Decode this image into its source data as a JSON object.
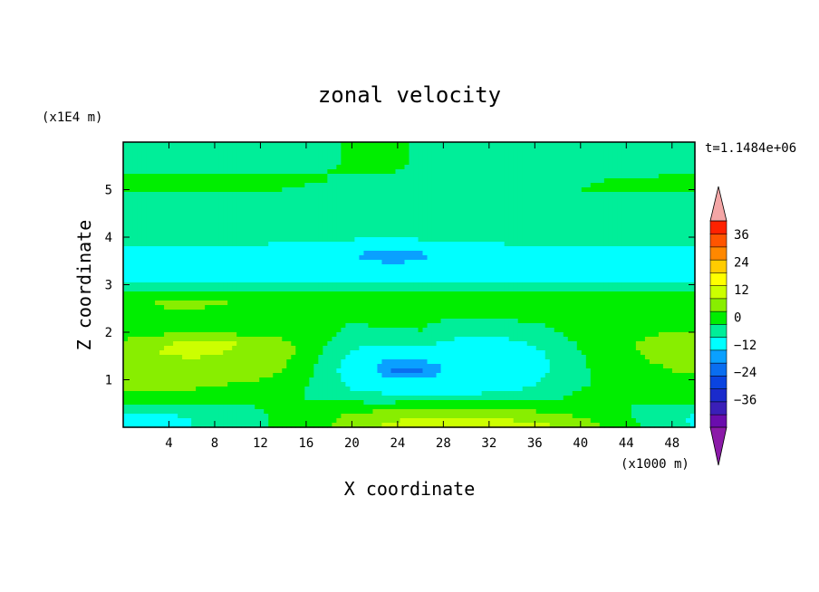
{
  "chart_data": {
    "type": "heatmap",
    "title": "zonal velocity",
    "xlabel": "X coordinate",
    "ylabel": "Z coordinate",
    "x_unit": "(x1000 m)",
    "y_unit": "(x1E4 m)",
    "time_label": "t=1.1484e+06",
    "xlim": [
      0,
      50
    ],
    "ylim": [
      0,
      6
    ],
    "x_ticks": [
      4,
      8,
      12,
      16,
      20,
      24,
      28,
      32,
      36,
      40,
      44,
      48
    ],
    "y_ticks": [
      1,
      2,
      3,
      4,
      5
    ],
    "colorbar": {
      "tick_labels": [
        "36",
        "24",
        "12",
        "0",
        "-12",
        "-24",
        "-36"
      ],
      "tick_values": [
        36,
        24,
        12,
        0,
        -12,
        -24,
        -36
      ],
      "levels": [
        -42,
        -36,
        -30,
        -24,
        -18,
        -12,
        -6,
        0,
        6,
        12,
        18,
        24,
        30,
        36,
        42
      ],
      "colors": [
        "#6a0dad",
        "#3a1fb8",
        "#1a2bcc",
        "#0a44e0",
        "#0a6ef0",
        "#0aa0ff",
        "#00ffff",
        "#00ee99",
        "#00ee00",
        "#88ee00",
        "#ccff00",
        "#ffff00",
        "#ffcc00",
        "#ff8800",
        "#ff5500",
        "#ff2200"
      ],
      "under_color": "#8b1aa8",
      "over_color": "#f4a6a6"
    },
    "field_z": [
      0.0,
      0.2,
      0.4,
      0.6,
      0.8,
      1.0,
      1.2,
      1.4,
      1.6,
      1.8,
      2.0,
      2.2,
      2.4,
      2.6,
      2.8,
      3.0,
      3.2,
      3.4,
      3.6,
      3.8,
      4.0,
      4.2,
      4.4,
      4.6,
      4.8,
      5.0,
      5.2,
      5.4,
      5.6,
      5.8,
      6.0
    ],
    "field_x": [
      0,
      2,
      4,
      6,
      8,
      10,
      12,
      14,
      16,
      18,
      20,
      22,
      24,
      26,
      28,
      30,
      32,
      34,
      36,
      38,
      40,
      42,
      44,
      46,
      48,
      50
    ],
    "field_u": [
      [
        -7,
        -7,
        -7,
        -6,
        -5,
        -3,
        -1,
        2,
        4,
        6,
        9,
        12,
        14,
        15,
        16,
        16,
        16,
        15,
        14,
        12,
        9,
        6,
        2,
        -1,
        -4,
        -6
      ],
      [
        -8,
        -8,
        -7,
        -6,
        -5,
        -3,
        -1,
        1,
        3,
        5,
        8,
        10,
        11,
        12,
        12,
        12,
        12,
        11,
        10,
        9,
        6,
        4,
        1,
        -2,
        -5,
        -7
      ],
      [
        -4,
        -4,
        -4,
        -3,
        -2,
        -1,
        0,
        1,
        2,
        3,
        4,
        4,
        5,
        5,
        5,
        5,
        5,
        5,
        4,
        3,
        2,
        1,
        0,
        -1,
        -2,
        -3
      ],
      [
        3,
        3,
        3,
        3,
        2,
        1,
        1,
        0,
        0,
        -1,
        -2,
        -3,
        -3,
        -3,
        -3,
        -3,
        -3,
        -2,
        -1,
        0,
        1,
        1,
        1,
        1,
        2,
        2
      ],
      [
        6,
        6,
        6,
        6,
        5,
        4,
        3,
        1,
        0,
        -3,
        -6,
        -8,
        -9,
        -9,
        -9,
        -9,
        -8,
        -7,
        -5,
        -2,
        0,
        1,
        1,
        2,
        3,
        3
      ],
      [
        7,
        7,
        8,
        8,
        8,
        7,
        6,
        4,
        1,
        -4,
        -8,
        -10,
        -12,
        -11,
        -10,
        -10,
        -10,
        -9,
        -7,
        -4,
        -1,
        1,
        2,
        3,
        4,
        5
      ],
      [
        8,
        9,
        10,
        10,
        10,
        9,
        8,
        6,
        2,
        -4,
        -9,
        -12,
        -20,
        -19,
        -12,
        -11,
        -11,
        -10,
        -8,
        -5,
        -1,
        2,
        3,
        5,
        6,
        7
      ],
      [
        9,
        10,
        11,
        11,
        11,
        10,
        9,
        7,
        3,
        -3,
        -8,
        -11,
        -14,
        -12,
        -10,
        -10,
        -10,
        -9,
        -8,
        -5,
        -1,
        2,
        4,
        6,
        7,
        8
      ],
      [
        10,
        11,
        13,
        14,
        13,
        11,
        10,
        8,
        4,
        -2,
        -6,
        -8,
        -8,
        -7,
        -8,
        -9,
        -9,
        -8,
        -7,
        -4,
        0,
        3,
        5,
        7,
        8,
        9
      ],
      [
        7,
        8,
        11,
        14,
        14,
        12,
        10,
        7,
        4,
        0,
        -4,
        -5,
        -4,
        -4,
        -6,
        -8,
        -8,
        -7,
        -5,
        -2,
        1,
        3,
        5,
        7,
        9,
        9
      ],
      [
        3,
        4,
        5,
        5,
        5,
        4,
        4,
        3,
        2,
        1,
        -1,
        -2,
        -2,
        0,
        -2,
        -4,
        -4,
        -3,
        -2,
        0,
        2,
        3,
        4,
        5,
        6,
        6
      ],
      [
        2,
        3,
        3,
        3,
        2,
        2,
        1,
        1,
        1,
        1,
        0,
        1,
        2,
        1,
        -1,
        -2,
        -2,
        -1,
        0,
        1,
        1,
        1,
        2,
        2,
        3,
        3
      ],
      [
        4,
        4,
        5,
        5,
        4,
        4,
        3,
        3,
        3,
        3,
        4,
        4,
        4,
        4,
        3,
        3,
        3,
        3,
        3,
        3,
        3,
        3,
        3,
        3,
        3,
        4
      ],
      [
        6,
        6,
        7,
        7,
        7,
        6,
        6,
        5,
        5,
        5,
        6,
        6,
        6,
        6,
        5,
        5,
        5,
        5,
        5,
        5,
        5,
        5,
        5,
        5,
        5,
        6
      ],
      [
        1,
        2,
        2,
        2,
        1,
        1,
        1,
        2,
        2,
        3,
        3,
        3,
        3,
        3,
        2,
        2,
        2,
        2,
        2,
        2,
        2,
        2,
        2,
        2,
        2,
        2
      ],
      [
        -6,
        -6,
        -6,
        -6,
        -5,
        -5,
        -5,
        -5,
        -5,
        -5,
        -5,
        -5,
        -5,
        -5,
        -5,
        -5,
        -5,
        -5,
        -5,
        -5,
        -5,
        -5,
        -5,
        -5,
        -6,
        -6
      ],
      [
        -8,
        -8,
        -8,
        -8,
        -8,
        -8,
        -8,
        -8,
        -8,
        -8,
        -8,
        -8,
        -8,
        -8,
        -8,
        -8,
        -8,
        -8,
        -8,
        -8,
        -8,
        -8,
        -8,
        -8,
        -8,
        -8
      ],
      [
        -8,
        -8,
        -8,
        -8,
        -8,
        -8,
        -8,
        -8,
        -8,
        -9,
        -10,
        -10,
        -10,
        -10,
        -9,
        -8,
        -8,
        -8,
        -8,
        -8,
        -8,
        -8,
        -8,
        -8,
        -8,
        -8
      ],
      [
        -7,
        -7,
        -7,
        -7,
        -7,
        -7,
        -8,
        -8,
        -8,
        -9,
        -11,
        -15,
        -16,
        -14,
        -9,
        -8,
        -8,
        -7,
        -7,
        -7,
        -7,
        -7,
        -7,
        -7,
        -7,
        -7
      ],
      [
        -6,
        -6,
        -6,
        -6,
        -6,
        -6,
        -6,
        -7,
        -7,
        -8,
        -9,
        -10,
        -10,
        -9,
        -8,
        -7,
        -7,
        -6,
        -6,
        -6,
        -6,
        -6,
        -6,
        -6,
        -6,
        -6
      ],
      [
        -5,
        -5,
        -5,
        -5,
        -5,
        -5,
        -5,
        -5,
        -5,
        -5,
        -5,
        -5,
        -5,
        -5,
        -5,
        -5,
        -5,
        -5,
        -5,
        -5,
        -5,
        -5,
        -5,
        -5,
        -5,
        -5
      ],
      [
        -2,
        -2,
        -2,
        -2,
        -2,
        -2,
        -2,
        -2,
        -3,
        -3,
        -3,
        -3,
        -3,
        -3,
        -3,
        -3,
        -3,
        -3,
        -2,
        -2,
        -2,
        -2,
        -2,
        -2,
        -2,
        -2
      ],
      [
        -4,
        -4,
        -4,
        -4,
        -3,
        -3,
        -3,
        -3,
        -3,
        -3,
        -3,
        -3,
        0,
        0,
        -1,
        -3,
        -3,
        -3,
        -3,
        -3,
        -3,
        -3,
        -3,
        -3,
        -3,
        -3
      ],
      [
        -3,
        -3,
        -3,
        -3,
        -3,
        -3,
        -3,
        -3,
        -3,
        -3,
        -3,
        -3,
        -3,
        -3,
        -3,
        -3,
        -3,
        -3,
        -3,
        -3,
        -3,
        -3,
        -3,
        -3,
        -3,
        -3
      ],
      [
        -2,
        -2,
        -2,
        -2,
        -3,
        -3,
        -3,
        -3,
        -3,
        -3,
        -3,
        -3,
        -3,
        -3,
        -3,
        -3,
        -3,
        -3,
        -3,
        -3,
        -3,
        -3,
        -3,
        -3,
        -3,
        -3
      ],
      [
        1,
        1,
        1,
        1,
        1,
        1,
        0,
        0,
        -1,
        -2,
        -2,
        -2,
        -2,
        -2,
        -2,
        -2,
        -2,
        -2,
        -2,
        -1,
        0,
        1,
        1,
        1,
        1,
        1
      ],
      [
        2,
        2,
        3,
        3,
        3,
        3,
        2,
        2,
        1,
        0,
        -1,
        -1,
        -1,
        -1,
        -1,
        -1,
        -1,
        -1,
        -1,
        -1,
        -1,
        0,
        1,
        1,
        2,
        2
      ],
      [
        -2,
        -2,
        -2,
        -2,
        -2,
        -2,
        -2,
        -1,
        -1,
        0,
        1,
        1,
        0,
        -1,
        -2,
        -2,
        -2,
        -2,
        -2,
        -2,
        -2,
        -2,
        -2,
        -2,
        -2,
        -2
      ],
      [
        -3,
        -3,
        -3,
        -3,
        -3,
        -3,
        -3,
        -3,
        -2,
        -1,
        1,
        2,
        1,
        -1,
        -2,
        -2,
        -2,
        -2,
        -2,
        -3,
        -3,
        -3,
        -3,
        -3,
        -3,
        -3
      ],
      [
        -3,
        -3,
        -3,
        -3,
        -3,
        -3,
        -3,
        -3,
        -2,
        -1,
        1,
        2,
        1,
        -1,
        -2,
        -2,
        -2,
        -2,
        -2,
        -3,
        -3,
        -3,
        -3,
        -3,
        -3,
        -3
      ],
      [
        -3,
        -3,
        -3,
        -3,
        -3,
        -3,
        -3,
        -3,
        -2,
        -1,
        1,
        2,
        1,
        -1,
        -2,
        -2,
        -2,
        -2,
        -2,
        -3,
        -3,
        -3,
        -3,
        -3,
        -3,
        -3
      ]
    ]
  }
}
